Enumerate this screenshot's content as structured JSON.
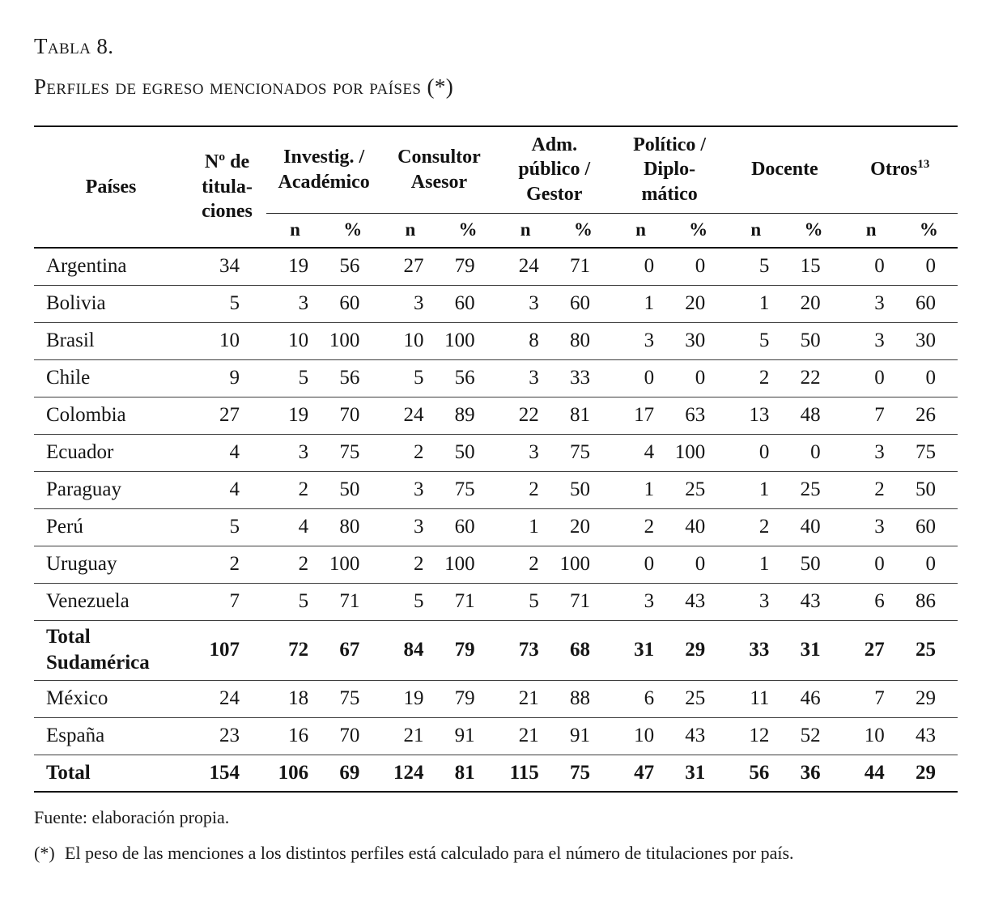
{
  "title": {
    "line1": "Tabla 8.",
    "line2": "Perfiles de egreso mencionados por países (*)"
  },
  "table": {
    "headers": {
      "paises": "Países",
      "titulaciones": "Nº de\ntitula-\nciones",
      "groups": [
        {
          "label": "Investig. /\nAcadémico",
          "sup": ""
        },
        {
          "label": "Consultor\nAsesor",
          "sup": ""
        },
        {
          "label": "Adm.\npúblico /\nGestor",
          "sup": ""
        },
        {
          "label": "Político /\nDiplo-\nmático",
          "sup": ""
        },
        {
          "label": "Docente",
          "sup": ""
        },
        {
          "label": "Otros",
          "sup": "13"
        }
      ],
      "sub_n": "n",
      "sub_pct": "%"
    },
    "rows": [
      {
        "name": "Argentina",
        "titulaciones": "34",
        "bold": false,
        "values": [
          "19",
          "56",
          "27",
          "79",
          "24",
          "71",
          "0",
          "0",
          "5",
          "15",
          "0",
          "0"
        ]
      },
      {
        "name": "Bolivia",
        "titulaciones": "5",
        "bold": false,
        "values": [
          "3",
          "60",
          "3",
          "60",
          "3",
          "60",
          "1",
          "20",
          "1",
          "20",
          "3",
          "60"
        ]
      },
      {
        "name": "Brasil",
        "titulaciones": "10",
        "bold": false,
        "values": [
          "10",
          "100",
          "10",
          "100",
          "8",
          "80",
          "3",
          "30",
          "5",
          "50",
          "3",
          "30"
        ]
      },
      {
        "name": "Chile",
        "titulaciones": "9",
        "bold": false,
        "values": [
          "5",
          "56",
          "5",
          "56",
          "3",
          "33",
          "0",
          "0",
          "2",
          "22",
          "0",
          "0"
        ]
      },
      {
        "name": "Colombia",
        "titulaciones": "27",
        "bold": false,
        "values": [
          "19",
          "70",
          "24",
          "89",
          "22",
          "81",
          "17",
          "63",
          "13",
          "48",
          "7",
          "26"
        ]
      },
      {
        "name": "Ecuador",
        "titulaciones": "4",
        "bold": false,
        "values": [
          "3",
          "75",
          "2",
          "50",
          "3",
          "75",
          "4",
          "100",
          "0",
          "0",
          "3",
          "75"
        ]
      },
      {
        "name": "Paraguay",
        "titulaciones": "4",
        "bold": false,
        "values": [
          "2",
          "50",
          "3",
          "75",
          "2",
          "50",
          "1",
          "25",
          "1",
          "25",
          "2",
          "50"
        ]
      },
      {
        "name": "Perú",
        "titulaciones": "5",
        "bold": false,
        "values": [
          "4",
          "80",
          "3",
          "60",
          "1",
          "20",
          "2",
          "40",
          "2",
          "40",
          "3",
          "60"
        ]
      },
      {
        "name": "Uruguay",
        "titulaciones": "2",
        "bold": false,
        "values": [
          "2",
          "100",
          "2",
          "100",
          "2",
          "100",
          "0",
          "0",
          "1",
          "50",
          "0",
          "0"
        ]
      },
      {
        "name": "Venezuela",
        "titulaciones": "7",
        "bold": false,
        "values": [
          "5",
          "71",
          "5",
          "71",
          "5",
          "71",
          "3",
          "43",
          "3",
          "43",
          "6",
          "86"
        ]
      },
      {
        "name": "Total Sudamérica",
        "titulaciones": "107",
        "bold": true,
        "values": [
          "72",
          "67",
          "84",
          "79",
          "73",
          "68",
          "31",
          "29",
          "33",
          "31",
          "27",
          "25"
        ]
      },
      {
        "name": "México",
        "titulaciones": "24",
        "bold": false,
        "values": [
          "18",
          "75",
          "19",
          "79",
          "21",
          "88",
          "6",
          "25",
          "11",
          "46",
          "7",
          "29"
        ]
      },
      {
        "name": "España",
        "titulaciones": "23",
        "bold": false,
        "values": [
          "16",
          "70",
          "21",
          "91",
          "21",
          "91",
          "10",
          "43",
          "12",
          "52",
          "10",
          "43"
        ]
      },
      {
        "name": "Total",
        "titulaciones": "154",
        "bold": true,
        "values": [
          "106",
          "69",
          "124",
          "81",
          "115",
          "75",
          "47",
          "31",
          "56",
          "36",
          "44",
          "29"
        ]
      }
    ]
  },
  "footer": {
    "source": "Fuente: elaboración propia.",
    "note_marker": "(*)",
    "note_text": "El peso de las menciones a los distintos perfiles está calculado para el número de titulaciones por país."
  }
}
